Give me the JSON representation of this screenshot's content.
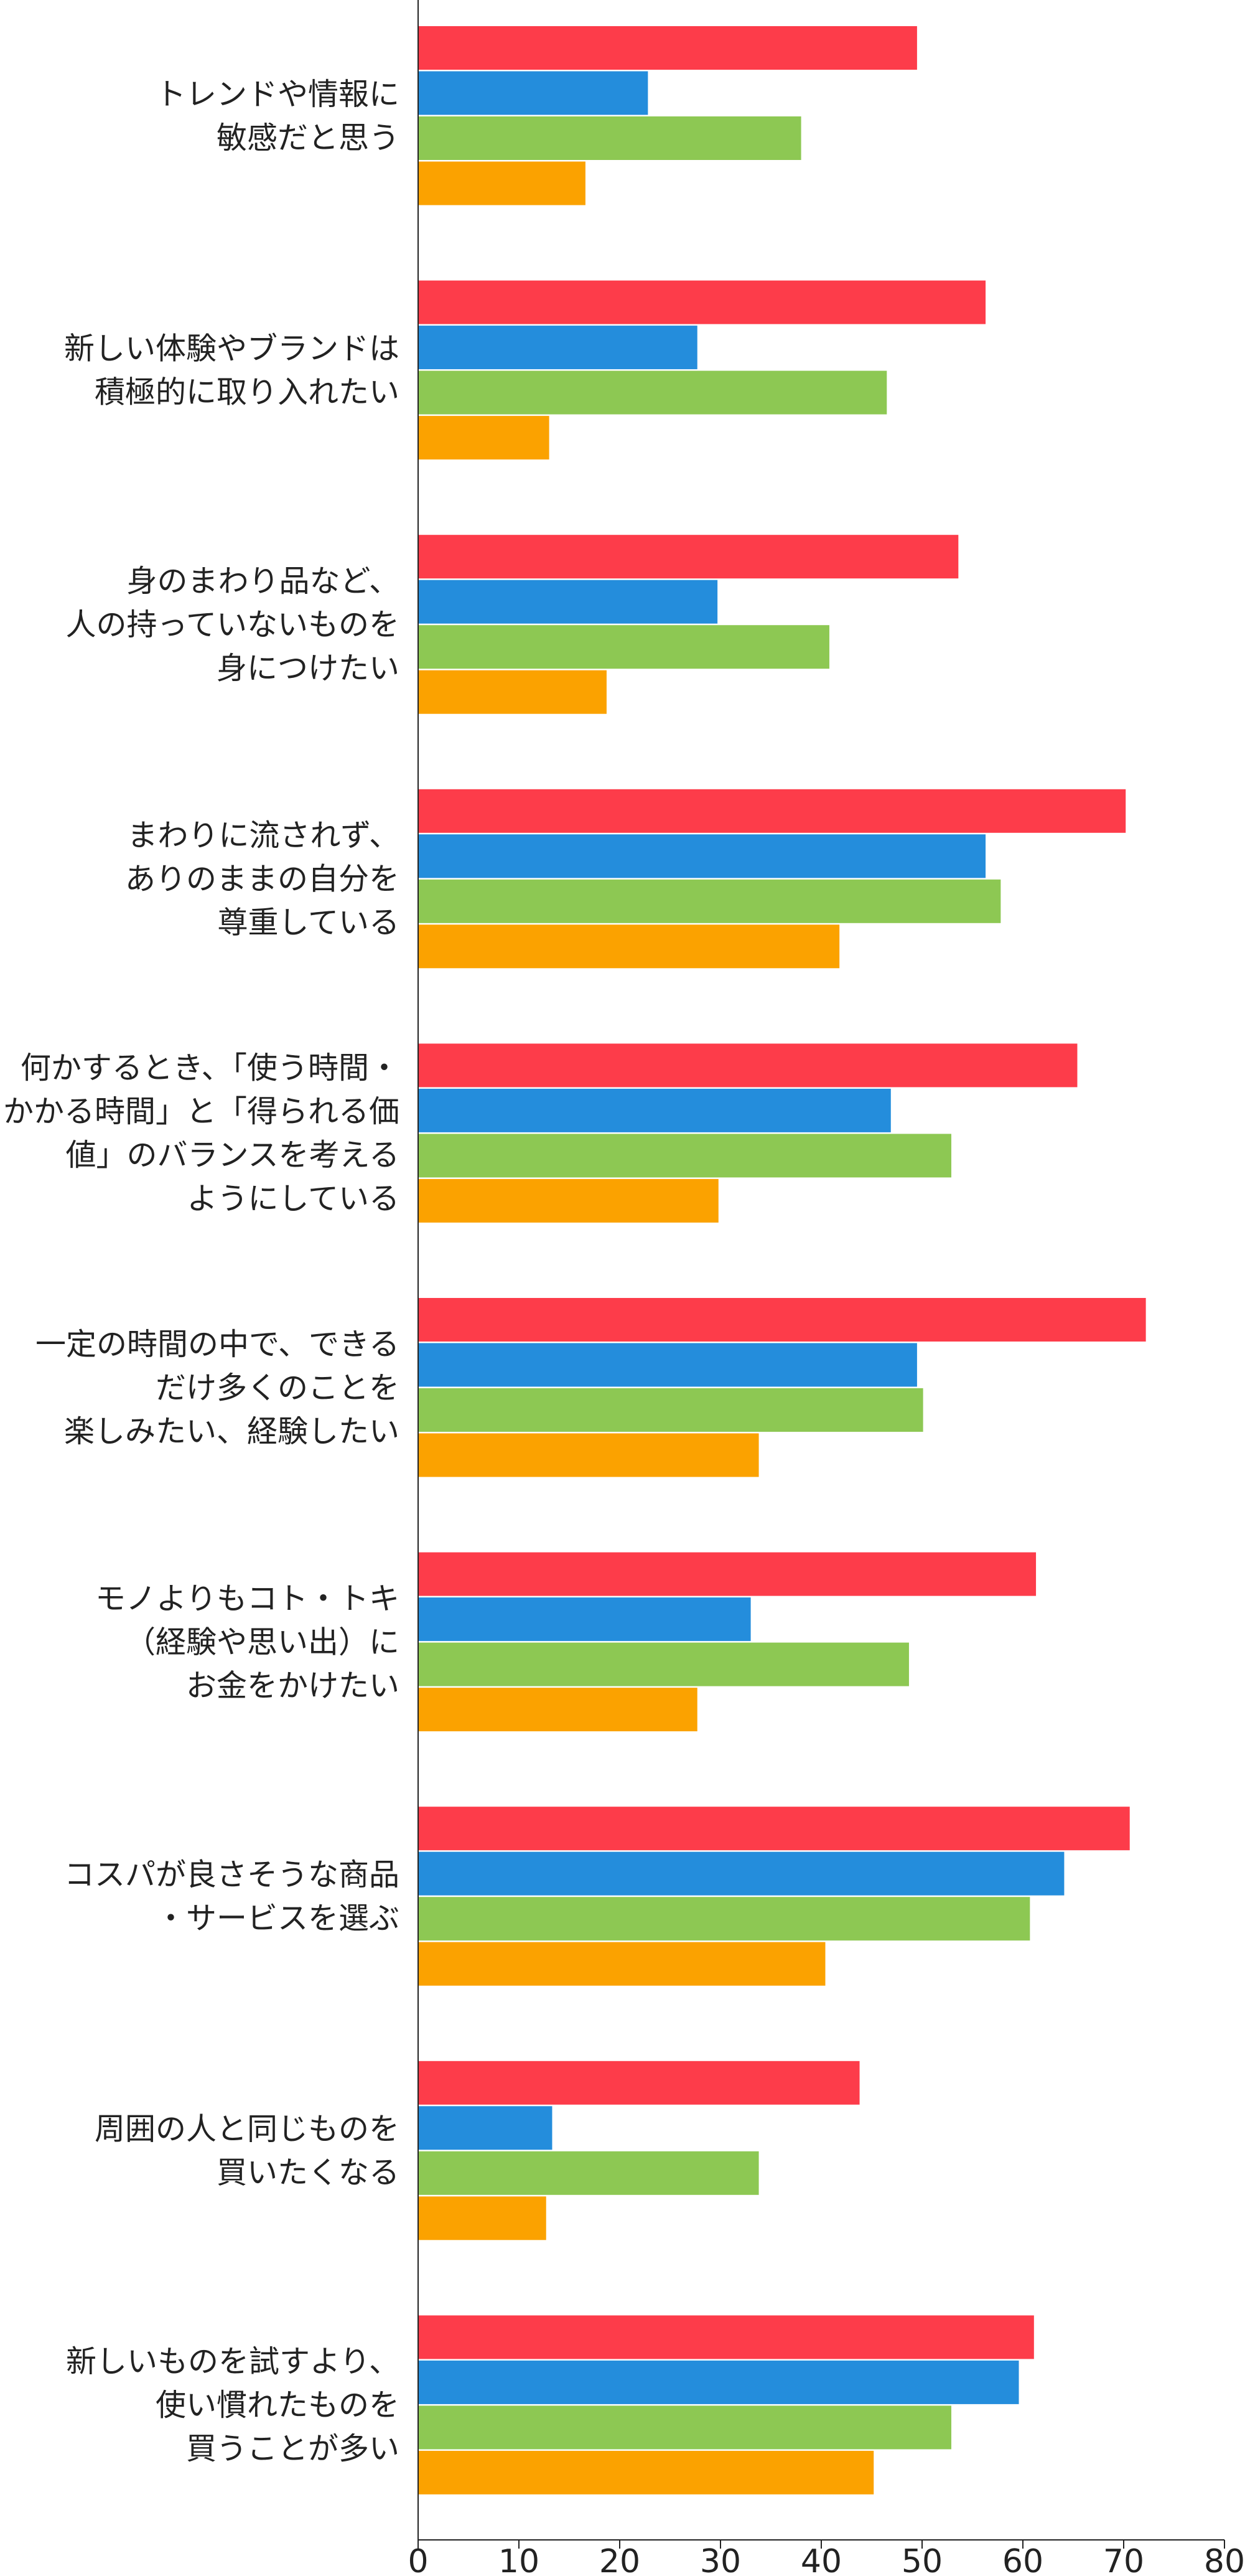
{
  "chart_data": {
    "type": "bar",
    "orientation": "horizontal",
    "categories": [
      [
        "トレンドや情報に",
        "敏感だと思う"
      ],
      [
        "新しい体験やブランドは",
        "積極的に取り入れたい"
      ],
      [
        "身のまわり品など、",
        "人の持っていないものを",
        "身につけたい"
      ],
      [
        "まわりに流されず、",
        "ありのままの自分を",
        "尊重している"
      ],
      [
        "何かするとき、「使う時間・",
        "かかる時間」と「得られる価",
        "値」のバランスを考える",
        "ようにしている"
      ],
      [
        "一定の時間の中で、できる",
        "だけ多くのことを",
        "楽しみたい、経験したい"
      ],
      [
        "モノよりもコト・トキ",
        "（経験や思い出）に",
        "お金をかけたい"
      ],
      [
        "コスパが良さそうな商品",
        "・サービスを選ぶ"
      ],
      [
        "周囲の人と同じものを",
        "買いたくなる"
      ],
      [
        "新しいものを試すより、",
        "使い慣れたものを",
        "買うことが多い"
      ]
    ],
    "series": [
      {
        "color": "#fd3c4a",
        "values": [
          49.5,
          56.3,
          53.6,
          70.2,
          65.4,
          72.2,
          61.3,
          70.6,
          43.8,
          61.1
        ]
      },
      {
        "color": "#248ddc",
        "values": [
          22.8,
          27.7,
          29.7,
          56.3,
          46.9,
          49.5,
          33.0,
          64.1,
          13.3,
          59.6
        ]
      },
      {
        "color": "#8dc853",
        "values": [
          38.0,
          46.5,
          40.8,
          57.8,
          52.9,
          50.1,
          48.7,
          60.7,
          33.8,
          52.9
        ]
      },
      {
        "color": "#fba200",
        "values": [
          16.6,
          13.0,
          18.7,
          41.8,
          29.8,
          33.8,
          27.7,
          40.4,
          12.7,
          45.2
        ]
      }
    ],
    "xlim": [
      0,
      80
    ],
    "xticks": [
      0,
      10,
      20,
      30,
      40,
      50,
      60,
      70,
      80
    ],
    "grid": false,
    "axis_color": "#222222"
  }
}
